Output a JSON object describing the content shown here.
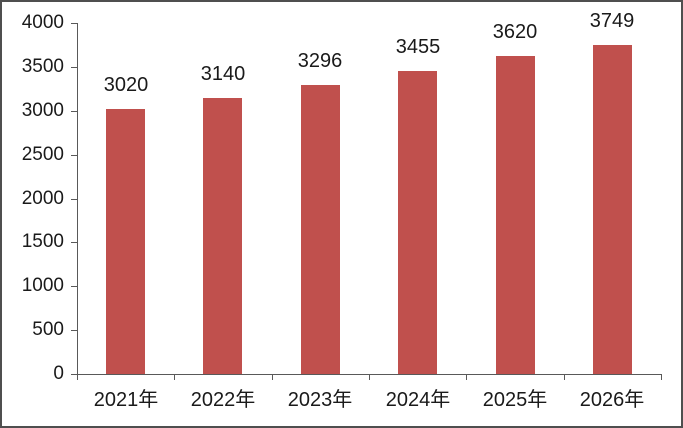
{
  "chart_data": {
    "type": "bar",
    "categories": [
      "2021年",
      "2022年",
      "2023年",
      "2024年",
      "2025年",
      "2026年"
    ],
    "values": [
      3020,
      3140,
      3296,
      3455,
      3620,
      3749
    ],
    "title": "",
    "xlabel": "",
    "ylabel": "",
    "ylim": [
      0,
      4000
    ],
    "yticks": [
      0,
      500,
      1000,
      1500,
      2000,
      2500,
      3000,
      3500,
      4000
    ],
    "data_labels": [
      3020,
      3140,
      3296,
      3455,
      3620,
      3749
    ],
    "grid": false,
    "legend": false,
    "colors": {
      "bar_fill": "#C0504D",
      "axis_line": "#595959",
      "text": "#1a1a1a",
      "background": "#FFFFFF",
      "frame_border": "#4f4f4f"
    }
  }
}
